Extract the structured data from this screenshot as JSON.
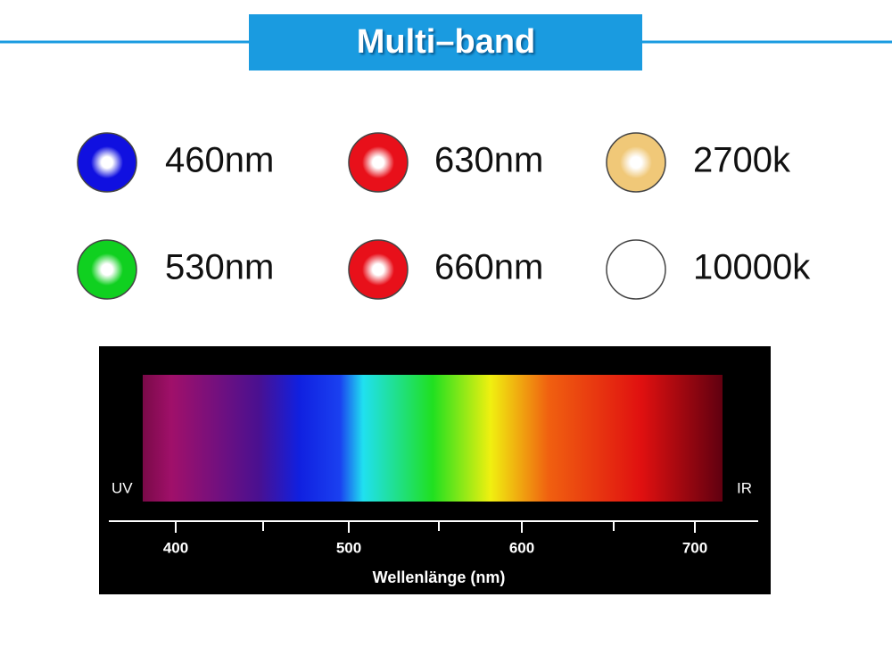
{
  "header": {
    "title": "Multi–band"
  },
  "bands": [
    {
      "label": "460nm",
      "color": "#1010e0"
    },
    {
      "label": "630nm",
      "color": "#e8101a"
    },
    {
      "label": "2700k",
      "color": "#f0c878"
    },
    {
      "label": "530nm",
      "color": "#10d020"
    },
    {
      "label": "660nm",
      "color": "#e8101a"
    },
    {
      "label": "10000k",
      "color": "#ffffff"
    }
  ],
  "spectrum": {
    "left_label": "UV",
    "right_label": "IR",
    "axis_label": "Wellenlänge (nm)",
    "ticks": [
      400,
      500,
      600,
      700
    ]
  }
}
